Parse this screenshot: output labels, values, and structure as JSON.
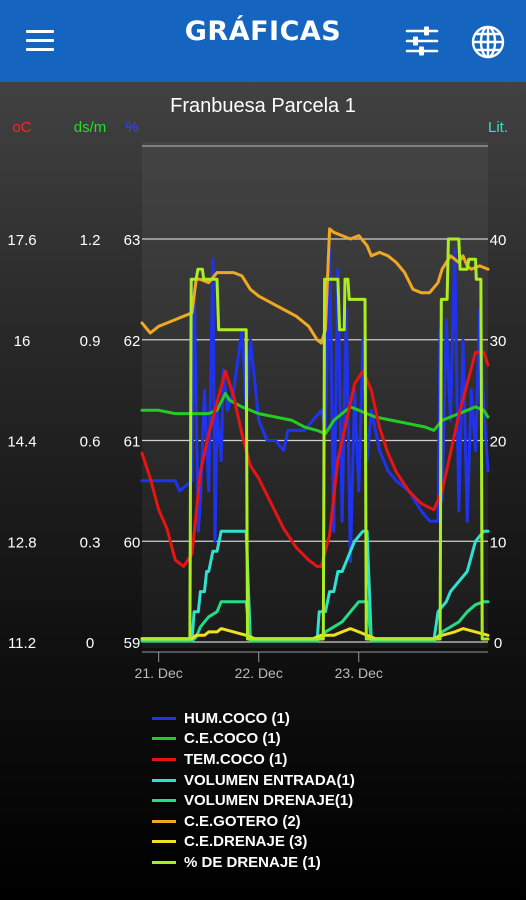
{
  "app": {
    "title": "GRÁFICAS",
    "icons": [
      "menu-icon",
      "filter-sliders-icon",
      "globe-icon"
    ]
  },
  "chart_data": {
    "type": "line",
    "title": "Franbuesa Parcela 1",
    "x_ticks": [
      "21. Dec",
      "22. Dec",
      "23. Dec"
    ],
    "x_range_hours": [
      -4,
      79
    ],
    "axes": {
      "temp": {
        "label": "oC",
        "color": "#ff2222",
        "ticks": [
          "17.6",
          "16",
          "14.4",
          "12.8",
          "11.2"
        ],
        "range": [
          11.2,
          17.6
        ]
      },
      "ce": {
        "label": "ds/m",
        "color": "#22dd22",
        "ticks": [
          "1.2",
          "0.9",
          "0.6",
          "0.3",
          "0"
        ],
        "range": [
          0,
          1.2
        ]
      },
      "hum": {
        "label": "%",
        "color": "#3344ff",
        "ticks": [
          "63",
          "62",
          "61",
          "60",
          "59"
        ],
        "range": [
          59,
          63
        ]
      },
      "vol": {
        "label": "Lit.",
        "color": "#33e0d0",
        "ticks": [
          "40",
          "30",
          "20",
          "10",
          "0"
        ],
        "range": [
          0,
          40
        ]
      }
    },
    "series": [
      {
        "name": "HUM.COCO (1)",
        "color": "#1f33ee",
        "axis": "hum",
        "points": [
          [
            -4,
            60.6
          ],
          [
            -1,
            60.6
          ],
          [
            4,
            60.6
          ],
          [
            5,
            60.5
          ],
          [
            8,
            60.6
          ],
          [
            8.5,
            62.6
          ],
          [
            9.5,
            60.1
          ],
          [
            10,
            60.4
          ],
          [
            11,
            61.5
          ],
          [
            12,
            60.5
          ],
          [
            13,
            62.8
          ],
          [
            13.5,
            60.0
          ],
          [
            14,
            61.3
          ],
          [
            15,
            60.8
          ],
          [
            15.5,
            61.7
          ],
          [
            16.5,
            61.3
          ],
          [
            18,
            61.5
          ],
          [
            20,
            62.1
          ],
          [
            21,
            61.3
          ],
          [
            22,
            62.0
          ],
          [
            23,
            61.6
          ],
          [
            24,
            61.2
          ],
          [
            26,
            61.0
          ],
          [
            28,
            61.0
          ],
          [
            30,
            60.9
          ],
          [
            31,
            61.1
          ],
          [
            33,
            61.1
          ],
          [
            35,
            61.1
          ],
          [
            37,
            61.2
          ],
          [
            39,
            61.3
          ],
          [
            40,
            61.1
          ],
          [
            41,
            62.9
          ],
          [
            42,
            60.1
          ],
          [
            43,
            62.7
          ],
          [
            44,
            60.2
          ],
          [
            45,
            62.3
          ],
          [
            46,
            59.8
          ],
          [
            47,
            61.5
          ],
          [
            48,
            60.5
          ],
          [
            49,
            62.0
          ],
          [
            50,
            60.8
          ],
          [
            51,
            61.3
          ],
          [
            53,
            60.9
          ],
          [
            55,
            60.7
          ],
          [
            57,
            60.6
          ],
          [
            60,
            60.5
          ],
          [
            63,
            60.3
          ],
          [
            65,
            60.2
          ],
          [
            67,
            60.2
          ],
          [
            67.5,
            62.1
          ],
          [
            68,
            60.4
          ],
          [
            69,
            62.2
          ],
          [
            70,
            61.2
          ],
          [
            71,
            62.9
          ],
          [
            72,
            60.3
          ],
          [
            73,
            62.0
          ],
          [
            74,
            60.2
          ],
          [
            75,
            61.5
          ],
          [
            76,
            60.9
          ],
          [
            77,
            62.3
          ],
          [
            78,
            61.3
          ],
          [
            79,
            60.7
          ]
        ]
      },
      {
        "name": "C.E.COCO (1)",
        "color": "#22cc22",
        "axis": "ce",
        "points": [
          [
            -4,
            0.69
          ],
          [
            0,
            0.69
          ],
          [
            4,
            0.68
          ],
          [
            8,
            0.68
          ],
          [
            12,
            0.68
          ],
          [
            14,
            0.69
          ],
          [
            16,
            0.74
          ],
          [
            17,
            0.72
          ],
          [
            20,
            0.7
          ],
          [
            24,
            0.68
          ],
          [
            28,
            0.67
          ],
          [
            32,
            0.66
          ],
          [
            35,
            0.64
          ],
          [
            38,
            0.63
          ],
          [
            40,
            0.62
          ],
          [
            42,
            0.66
          ],
          [
            44,
            0.68
          ],
          [
            46,
            0.7
          ],
          [
            48,
            0.69
          ],
          [
            52,
            0.67
          ],
          [
            56,
            0.66
          ],
          [
            60,
            0.65
          ],
          [
            64,
            0.64
          ],
          [
            66,
            0.63
          ],
          [
            68,
            0.66
          ],
          [
            70,
            0.67
          ],
          [
            72,
            0.68
          ],
          [
            74,
            0.69
          ],
          [
            76,
            0.7
          ],
          [
            78,
            0.69
          ],
          [
            79,
            0.67
          ]
        ]
      },
      {
        "name": "TEM.COCO (1)",
        "color": "#e81414",
        "axis": "temp",
        "points": [
          [
            -4,
            14.2
          ],
          [
            -2,
            13.8
          ],
          [
            0,
            13.3
          ],
          [
            2,
            13.0
          ],
          [
            4,
            12.5
          ],
          [
            6,
            12.4
          ],
          [
            8,
            12.6
          ],
          [
            10,
            13.9
          ],
          [
            12,
            14.5
          ],
          [
            14,
            15.0
          ],
          [
            16,
            15.5
          ],
          [
            18,
            15.1
          ],
          [
            20,
            14.5
          ],
          [
            22,
            14.0
          ],
          [
            24,
            13.8
          ],
          [
            27,
            13.4
          ],
          [
            30,
            13.0
          ],
          [
            33,
            12.7
          ],
          [
            36,
            12.5
          ],
          [
            38,
            12.4
          ],
          [
            39,
            12.4
          ],
          [
            41,
            12.9
          ],
          [
            43,
            14.1
          ],
          [
            45,
            14.7
          ],
          [
            47,
            15.3
          ],
          [
            49,
            15.5
          ],
          [
            51,
            15.2
          ],
          [
            53,
            14.6
          ],
          [
            55,
            14.2
          ],
          [
            57,
            13.9
          ],
          [
            60,
            13.6
          ],
          [
            63,
            13.4
          ],
          [
            66,
            13.3
          ],
          [
            68,
            13.6
          ],
          [
            70,
            14.2
          ],
          [
            72,
            14.8
          ],
          [
            74,
            15.3
          ],
          [
            76,
            15.8
          ],
          [
            78,
            15.8
          ],
          [
            79,
            15.6
          ]
        ]
      },
      {
        "name": "VOLUMEN ENTRADA(1)",
        "color": "#30e0d0",
        "axis": "vol",
        "points": [
          [
            -4,
            0.1
          ],
          [
            8,
            0.1
          ],
          [
            8.5,
            3
          ],
          [
            9.5,
            3
          ],
          [
            10,
            5
          ],
          [
            11,
            5
          ],
          [
            11.5,
            7
          ],
          [
            12,
            7
          ],
          [
            13,
            9
          ],
          [
            14,
            9
          ],
          [
            15,
            11
          ],
          [
            21,
            11
          ],
          [
            22,
            0.1
          ],
          [
            38,
            0.1
          ],
          [
            38.5,
            3
          ],
          [
            40,
            3
          ],
          [
            41,
            5
          ],
          [
            42,
            5
          ],
          [
            43,
            7
          ],
          [
            44,
            7
          ],
          [
            45,
            8
          ],
          [
            46,
            9
          ],
          [
            47,
            10
          ],
          [
            49,
            11
          ],
          [
            50,
            11
          ],
          [
            51,
            0.1
          ],
          [
            66,
            0.1
          ],
          [
            67,
            3
          ],
          [
            69,
            4
          ],
          [
            70,
            5
          ],
          [
            72,
            6
          ],
          [
            74,
            7
          ],
          [
            76,
            10
          ],
          [
            78,
            11
          ],
          [
            79,
            11
          ]
        ]
      },
      {
        "name": "VOLUMEN DRENAJE(1)",
        "color": "#22dd88",
        "axis": "vol",
        "points": [
          [
            -4,
            0.1
          ],
          [
            8,
            0.1
          ],
          [
            9,
            0.5
          ],
          [
            10,
            1.5
          ],
          [
            11,
            2
          ],
          [
            12,
            2.5
          ],
          [
            14,
            3
          ],
          [
            15,
            4
          ],
          [
            21,
            4
          ],
          [
            22,
            0.1
          ],
          [
            38,
            0.1
          ],
          [
            40,
            1
          ],
          [
            42,
            1.5
          ],
          [
            44,
            2
          ],
          [
            46,
            3
          ],
          [
            48,
            4
          ],
          [
            50,
            4
          ],
          [
            51,
            0.1
          ],
          [
            66,
            0.1
          ],
          [
            68,
            1
          ],
          [
            70,
            1.5
          ],
          [
            72,
            2
          ],
          [
            74,
            3
          ],
          [
            76,
            3.7
          ],
          [
            78,
            4
          ],
          [
            79,
            4
          ]
        ]
      },
      {
        "name": "C.E.GOTERO (2)",
        "color": "#f0a820",
        "axis": "ce",
        "points": [
          [
            -4,
            0.95
          ],
          [
            -2,
            0.92
          ],
          [
            0,
            0.94
          ],
          [
            2,
            0.95
          ],
          [
            4,
            0.96
          ],
          [
            6,
            0.97
          ],
          [
            8,
            0.98
          ],
          [
            9,
            1.08
          ],
          [
            10,
            1.08
          ],
          [
            12,
            1.07
          ],
          [
            14,
            1.1
          ],
          [
            16,
            1.1
          ],
          [
            18,
            1.1
          ],
          [
            20,
            1.09
          ],
          [
            22,
            1.05
          ],
          [
            24,
            1.03
          ],
          [
            27,
            1.01
          ],
          [
            30,
            0.99
          ],
          [
            33,
            0.97
          ],
          [
            36,
            0.94
          ],
          [
            38,
            0.9
          ],
          [
            39,
            0.89
          ],
          [
            40,
            0.93
          ],
          [
            41,
            1.23
          ],
          [
            42,
            1.22
          ],
          [
            44,
            1.21
          ],
          [
            46,
            1.2
          ],
          [
            48,
            1.21
          ],
          [
            50,
            1.18
          ],
          [
            51,
            1.15
          ],
          [
            53,
            1.16
          ],
          [
            55,
            1.15
          ],
          [
            57,
            1.13
          ],
          [
            59,
            1.1
          ],
          [
            61,
            1.05
          ],
          [
            63,
            1.04
          ],
          [
            65,
            1.04
          ],
          [
            67,
            1.07
          ],
          [
            68,
            1.11
          ],
          [
            70,
            1.15
          ],
          [
            71,
            1.14
          ],
          [
            72,
            1.13
          ],
          [
            73,
            1.15
          ],
          [
            74,
            1.12
          ],
          [
            75,
            1.11
          ],
          [
            77,
            1.12
          ],
          [
            79,
            1.11
          ]
        ]
      },
      {
        "name": "C.E.DRENAJE (3)",
        "color": "#f0e020",
        "axis": "ce",
        "points": [
          [
            -4,
            0.01
          ],
          [
            8,
            0.01
          ],
          [
            9,
            0.02
          ],
          [
            11,
            0.02
          ],
          [
            12,
            0.03
          ],
          [
            14,
            0.03
          ],
          [
            15,
            0.04
          ],
          [
            18,
            0.03
          ],
          [
            21,
            0.02
          ],
          [
            23,
            0.01
          ],
          [
            37,
            0.01
          ],
          [
            39,
            0.02
          ],
          [
            42,
            0.02
          ],
          [
            44,
            0.03
          ],
          [
            46,
            0.04
          ],
          [
            48,
            0.03
          ],
          [
            50,
            0.02
          ],
          [
            52,
            0.01
          ],
          [
            66,
            0.01
          ],
          [
            68,
            0.02
          ],
          [
            71,
            0.03
          ],
          [
            73,
            0.04
          ],
          [
            76,
            0.03
          ],
          [
            79,
            0.02
          ]
        ]
      },
      {
        "name": "% DE DRENAJE (1)",
        "color": "#aaee22",
        "axis": "vol",
        "points": [
          [
            -4,
            0.3
          ],
          [
            7.5,
            0.3
          ],
          [
            7.8,
            36
          ],
          [
            9,
            36
          ],
          [
            9.4,
            37
          ],
          [
            10.5,
            37
          ],
          [
            10.8,
            36
          ],
          [
            14,
            36
          ],
          [
            14.4,
            31
          ],
          [
            21,
            31
          ],
          [
            21.3,
            0.3
          ],
          [
            39.5,
            0.3
          ],
          [
            39.8,
            36
          ],
          [
            41,
            36
          ],
          [
            41.4,
            36
          ],
          [
            43,
            36
          ],
          [
            43.4,
            31
          ],
          [
            44.5,
            31
          ],
          [
            44.7,
            36
          ],
          [
            45.4,
            36
          ],
          [
            45.7,
            34
          ],
          [
            49.5,
            34
          ],
          [
            49.8,
            0.3
          ],
          [
            67.5,
            0.3
          ],
          [
            67.8,
            34
          ],
          [
            69.2,
            34
          ],
          [
            69.5,
            40
          ],
          [
            72,
            40
          ],
          [
            72.3,
            37
          ],
          [
            74,
            37
          ],
          [
            74.4,
            38
          ],
          [
            76,
            38
          ],
          [
            76.2,
            36
          ],
          [
            77.3,
            36
          ],
          [
            77.6,
            0.3
          ],
          [
            79,
            0.3
          ]
        ]
      }
    ]
  }
}
